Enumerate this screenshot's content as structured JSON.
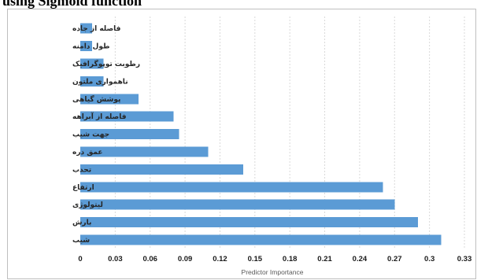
{
  "page": {
    "heading": "using Sigmoid function"
  },
  "chart_data": {
    "type": "bar",
    "orientation": "horizontal",
    "title": "",
    "xlabel": "Predictor Importance",
    "ylabel": "",
    "xlim": [
      0,
      0.33
    ],
    "ticks": [
      "0",
      "0.03",
      "0.06",
      "0.09",
      "0.12",
      "0.15",
      "0.18",
      "0.21",
      "0.24",
      "0.27",
      "0.3",
      "0.33"
    ],
    "grid": true,
    "legend": "none",
    "bar_color": "#5b9bd5",
    "categories": [
      "فاصله از جاده",
      "طول دامنه",
      "رطوبت توپوگرافیک",
      "ناهمواری ملتون",
      "پوشش گیاهی",
      "فاصله از آبراهه",
      "جهت شیب",
      "عمق دره",
      "تحدب",
      "ارتفاع",
      "لیتولوژی",
      "بارش",
      "شیب"
    ],
    "values": [
      0.01,
      0.01,
      0.02,
      0.02,
      0.05,
      0.08,
      0.085,
      0.11,
      0.14,
      0.26,
      0.27,
      0.29,
      0.31
    ]
  }
}
